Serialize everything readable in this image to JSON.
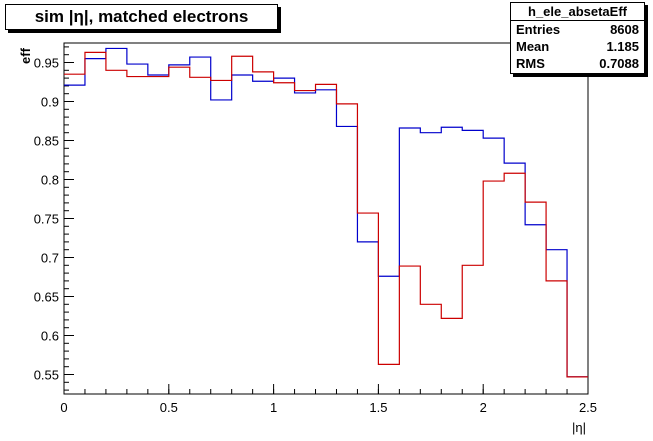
{
  "title": "sim |η|, matched electrons",
  "stats": {
    "name": "h_ele_absetaEff",
    "rows": [
      {
        "label": "Entries",
        "value": "8608"
      },
      {
        "label": "Mean",
        "value": "1.185"
      },
      {
        "label": "RMS",
        "value": "0.7088"
      }
    ]
  },
  "chart_data": {
    "type": "line",
    "step": true,
    "xlabel": "|η|",
    "ylabel": "eff",
    "xlim": [
      0,
      2.5
    ],
    "ylim": [
      0.525,
      0.975
    ],
    "xticks": [
      0,
      0.5,
      1,
      1.5,
      2,
      2.5
    ],
    "xtick_labels": [
      "0",
      "0.5",
      "1",
      "1.5",
      "2",
      "2.5"
    ],
    "yticks": [
      0.55,
      0.6,
      0.65,
      0.7,
      0.75,
      0.8,
      0.85,
      0.9,
      0.95
    ],
    "ytick_labels": [
      "0.55",
      "0.6",
      "0.65",
      "0.7",
      "0.75",
      "0.8",
      "0.85",
      "0.9",
      "0.95"
    ],
    "bin_edges": [
      0,
      0.1,
      0.2,
      0.3,
      0.4,
      0.5,
      0.6,
      0.7,
      0.8,
      0.9,
      1.0,
      1.1,
      1.2,
      1.3,
      1.4,
      1.5,
      1.6,
      1.7,
      1.8,
      1.9,
      2.0,
      2.1,
      2.2,
      2.3,
      2.4,
      2.5
    ],
    "series": [
      {
        "color": "#0000cc",
        "values": [
          0.921,
          0.955,
          0.968,
          0.948,
          0.934,
          0.947,
          0.957,
          0.902,
          0.934,
          0.926,
          0.93,
          0.911,
          0.915,
          0.868,
          0.72,
          0.676,
          0.866,
          0.86,
          0.867,
          0.863,
          0.853,
          0.821,
          0.742,
          0.71,
          0.547
        ]
      },
      {
        "color": "#cc0000",
        "values": [
          0.935,
          0.963,
          0.94,
          0.932,
          0.932,
          0.944,
          0.931,
          0.927,
          0.958,
          0.938,
          0.924,
          0.914,
          0.922,
          0.897,
          0.757,
          0.563,
          0.689,
          0.64,
          0.622,
          0.69,
          0.798,
          0.808,
          0.771,
          0.67,
          0.547
        ]
      }
    ]
  }
}
